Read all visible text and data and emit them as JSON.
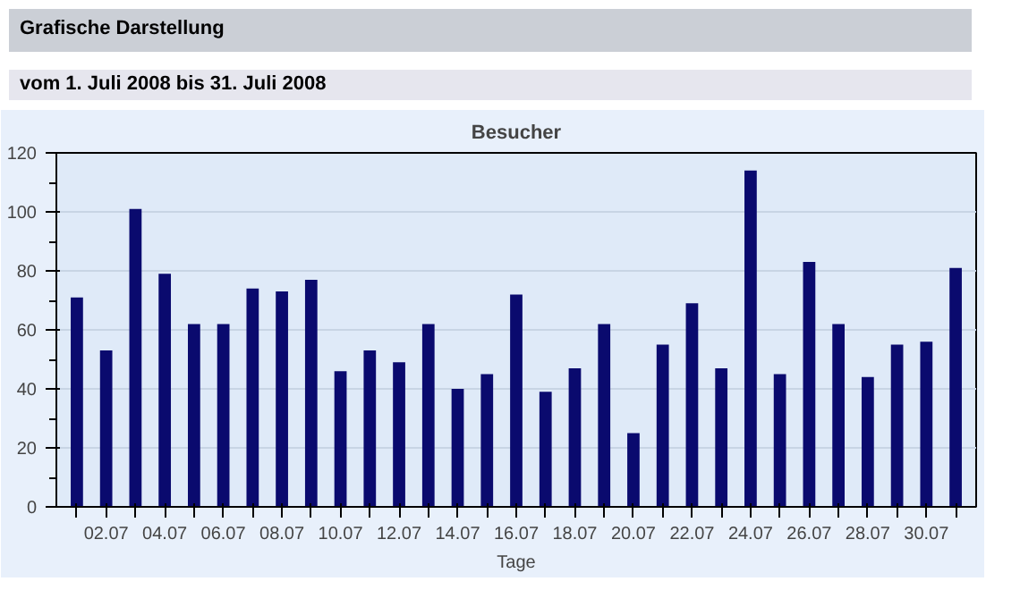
{
  "chart_data": {
    "type": "bar",
    "title": "Besucher",
    "xlabel": "Tage",
    "annotations": [
      "Grafische Darstellung",
      "vom 1. Juli 2008  bis 31. Juli 2008"
    ],
    "categories": [
      null,
      "02.07",
      null,
      "04.07",
      null,
      "06.07",
      null,
      "08.07",
      null,
      "10.07",
      null,
      "12.07",
      null,
      "14.07",
      null,
      "16.07",
      null,
      "18.07",
      null,
      "20.07",
      null,
      "22.07",
      null,
      "24.07",
      null,
      "26.07",
      null,
      "28.07",
      null,
      "30.07",
      null
    ],
    "values": [
      71,
      53,
      101,
      79,
      62,
      62,
      74,
      73,
      77,
      46,
      53,
      49,
      62,
      40,
      45,
      72,
      39,
      47,
      62,
      25,
      55,
      69,
      47,
      114,
      45,
      83,
      62,
      44,
      55,
      56,
      81
    ],
    "color": "#0a0a6e",
    "ylim": [
      0,
      120
    ],
    "yticks": [
      0,
      20,
      40,
      60,
      80,
      100,
      120
    ],
    "grid": "y"
  }
}
